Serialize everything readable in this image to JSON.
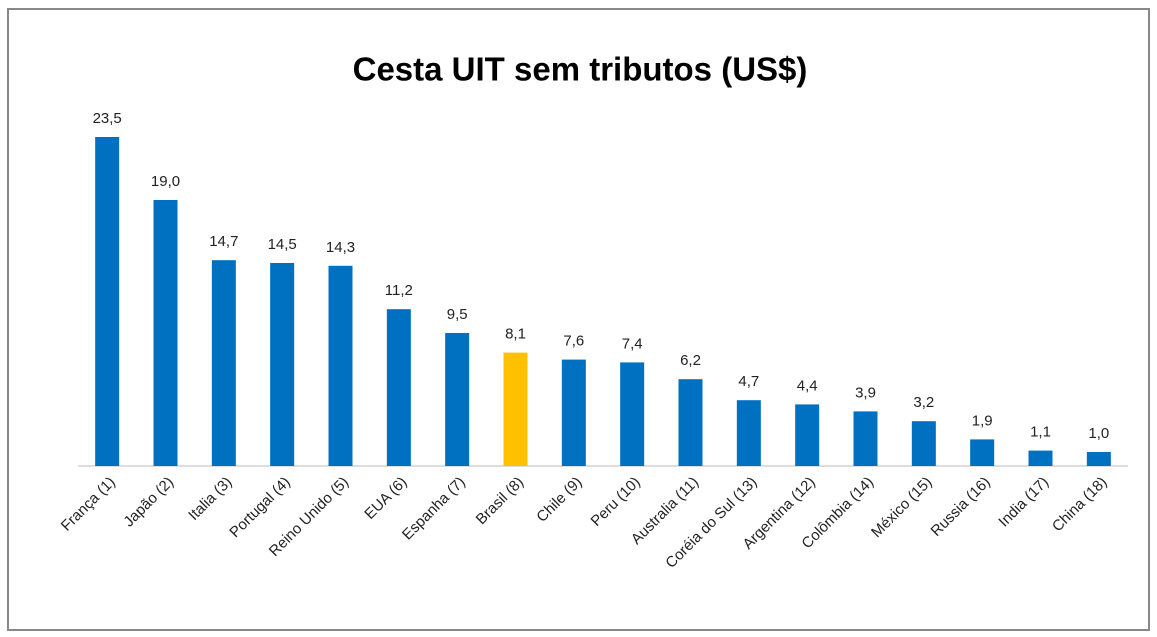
{
  "chart_data": {
    "type": "bar",
    "title": "Cesta UIT sem tributos (US$)",
    "categories": [
      "França (1)",
      "Japão (2)",
      "Italia (3)",
      "Portugal (4)",
      "Reino Unido (5)",
      "EUA (6)",
      "Espanha (7)",
      "Brasil (8)",
      "Chile (9)",
      "Peru (10)",
      "Australia (11)",
      "Coréia do Sul (13)",
      "Argentina (12)",
      "Colômbia (14)",
      "México (15)",
      "Russia (16)",
      "India (17)",
      "China (18)"
    ],
    "values": [
      23.5,
      19.0,
      14.7,
      14.5,
      14.3,
      11.2,
      9.5,
      8.1,
      7.6,
      7.4,
      6.2,
      4.7,
      4.4,
      3.9,
      3.2,
      1.9,
      1.1,
      1.0
    ],
    "value_labels": [
      "23,5",
      "19,0",
      "14,7",
      "14,5",
      "14,3",
      "11,2",
      "9,5",
      "8,1",
      "7,6",
      "7,4",
      "6,2",
      "4,7",
      "4,4",
      "3,9",
      "3,2",
      "1,9",
      "1,1",
      "1,0"
    ],
    "colors": [
      "#0070c0",
      "#0070c0",
      "#0070c0",
      "#0070c0",
      "#0070c0",
      "#0070c0",
      "#0070c0",
      "#ffc000",
      "#0070c0",
      "#0070c0",
      "#0070c0",
      "#0070c0",
      "#0070c0",
      "#0070c0",
      "#0070c0",
      "#0070c0",
      "#0070c0",
      "#0070c0"
    ]
  }
}
